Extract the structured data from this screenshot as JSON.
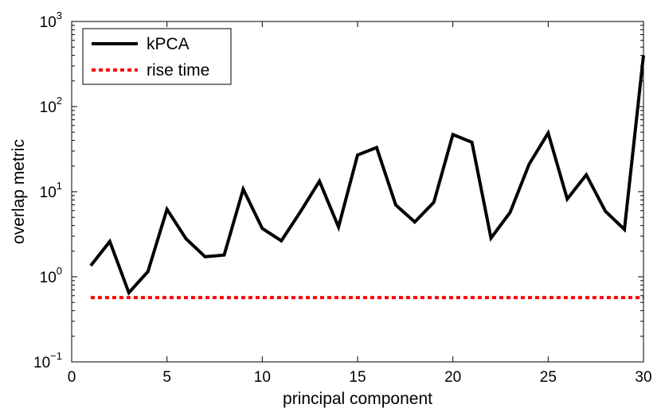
{
  "chart_data": {
    "type": "line",
    "title": "",
    "xlabel": "principal component",
    "ylabel": "overlap metric",
    "xlim": [
      0,
      30
    ],
    "ylim": [
      0.1,
      1000
    ],
    "yscale": "log",
    "grid": false,
    "legend_position": "top-left",
    "x_ticks": [
      {
        "value": 0,
        "label": "0"
      },
      {
        "value": 5,
        "label": "5"
      },
      {
        "value": 10,
        "label": "10"
      },
      {
        "value": 15,
        "label": "15"
      },
      {
        "value": 20,
        "label": "20"
      },
      {
        "value": 25,
        "label": "25"
      },
      {
        "value": 30,
        "label": "30"
      }
    ],
    "y_ticks": [
      {
        "value": 0.1,
        "base": "10",
        "exp": "−1"
      },
      {
        "value": 1,
        "base": "10",
        "exp": "0"
      },
      {
        "value": 10,
        "base": "10",
        "exp": "1"
      },
      {
        "value": 100,
        "base": "10",
        "exp": "2"
      },
      {
        "value": 1000,
        "base": "10",
        "exp": "3"
      }
    ],
    "series": [
      {
        "name": "kPCA",
        "style": "solid",
        "color": "#000000",
        "x": [
          1,
          2,
          3,
          4,
          5,
          6,
          7,
          8,
          9,
          10,
          11,
          12,
          13,
          14,
          15,
          16,
          17,
          18,
          19,
          20,
          21,
          22,
          23,
          24,
          25,
          26,
          27,
          28,
          29,
          30
        ],
        "values": [
          1.35,
          2.6,
          0.65,
          1.15,
          6.2,
          2.8,
          1.72,
          1.8,
          10.7,
          3.7,
          2.65,
          5.8,
          13.3,
          3.85,
          27,
          33,
          7,
          4.4,
          7.5,
          47,
          38,
          2.85,
          5.7,
          21,
          49,
          8.2,
          15.8,
          5.9,
          3.6,
          400
        ]
      },
      {
        "name": "rise time",
        "style": "dotted",
        "color": "#ff0000",
        "x": [
          1,
          30
        ],
        "values": [
          0.57,
          0.57
        ]
      }
    ]
  }
}
